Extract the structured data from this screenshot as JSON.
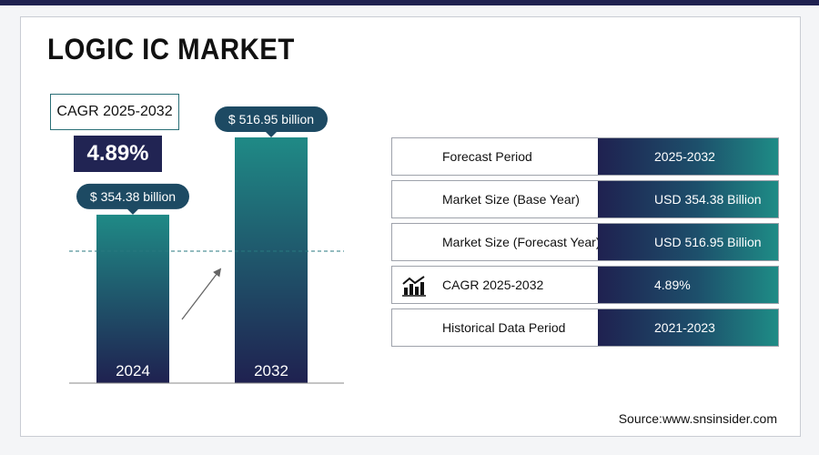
{
  "title": "LOGIC IC MARKET",
  "cagr": {
    "label": "CAGR 2025-2032",
    "value": "4.89%"
  },
  "chart_data": {
    "type": "bar",
    "categories": [
      "2024",
      "2032"
    ],
    "values": [
      354.38,
      516.95
    ],
    "value_labels": [
      "$ 354.38 billion",
      "$ 516.95 billion"
    ],
    "colors": {
      "bar_top": "#1f8a86",
      "bar_bottom": "#1f2150",
      "pill": "#1d4a63"
    }
  },
  "table": {
    "rows": [
      {
        "label": "Forecast Period",
        "value": "2025-2032",
        "icon": ""
      },
      {
        "label": "Market Size (Base Year)",
        "value": "USD 354.38 Billion",
        "icon": ""
      },
      {
        "label": "Market Size (Forecast Year)",
        "value": "USD  516.95 Billion",
        "icon": ""
      },
      {
        "label": "CAGR 2025-2032",
        "value": "4.89%",
        "icon": "chart-growth-icon"
      },
      {
        "label": "Historical Data Period",
        "value": "2021-2023",
        "icon": ""
      }
    ]
  },
  "source": "Source:www.snsinsider.com"
}
